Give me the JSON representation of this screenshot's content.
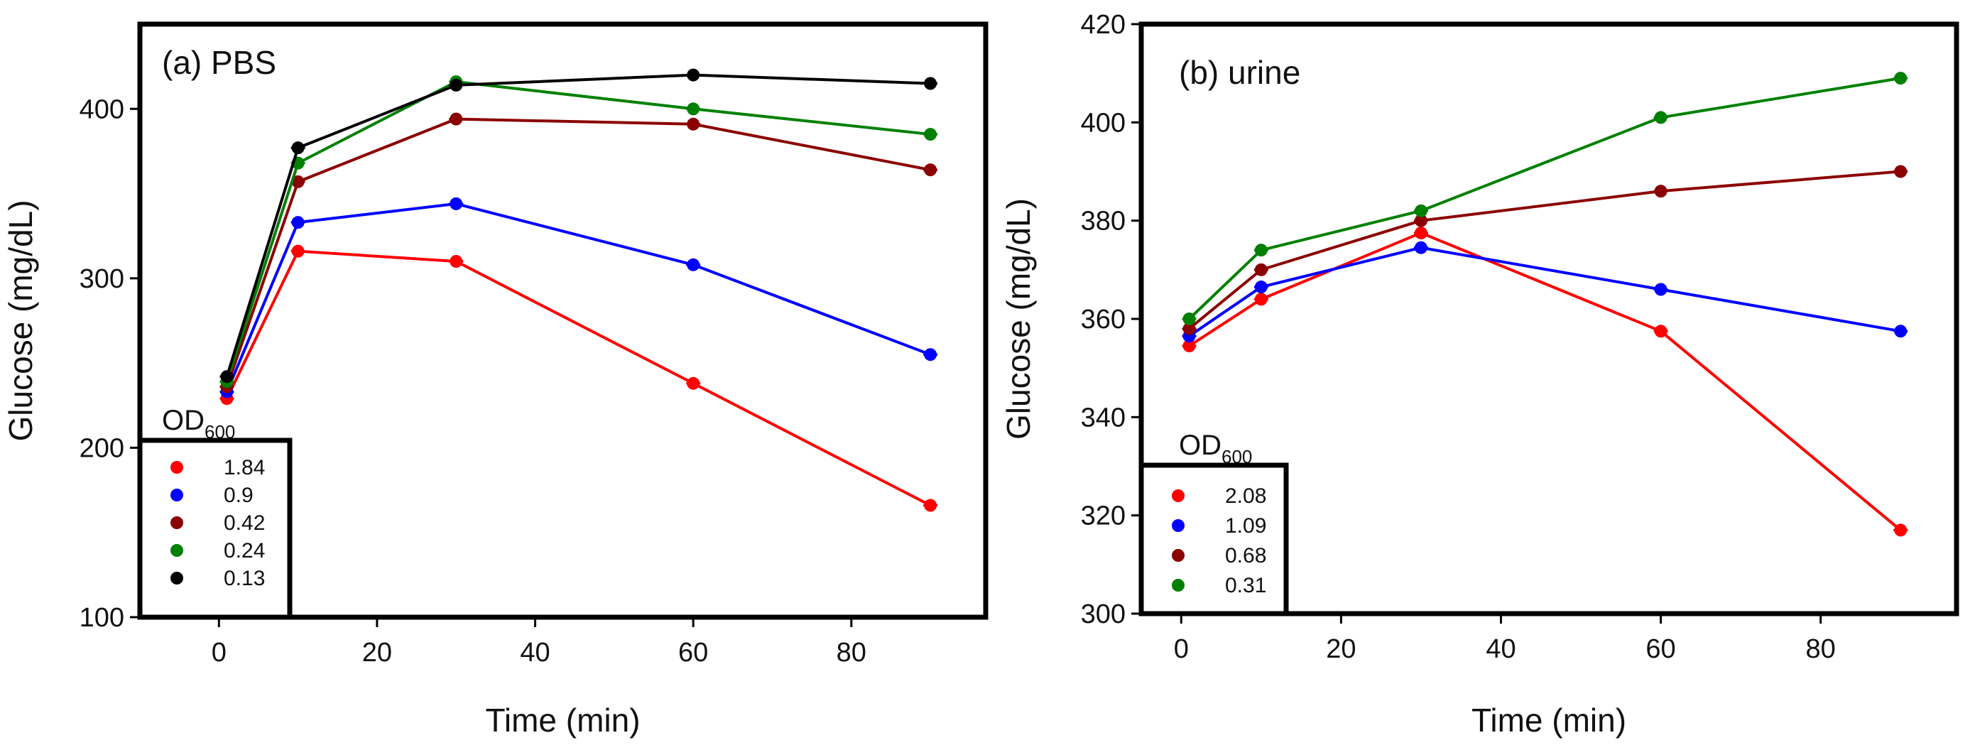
{
  "chart_data": [
    {
      "type": "line",
      "panel_label": "(a)  PBS",
      "xlabel": "Time (min)",
      "ylabel": "Glucose (mg/dL)",
      "xlim": [
        -10,
        97
      ],
      "ylim": [
        100,
        450
      ],
      "xticks": [
        0,
        20,
        40,
        60,
        80
      ],
      "yticks": [
        100,
        200,
        300,
        400
      ],
      "grid": false,
      "legend": {
        "title": "OD",
        "title_sub": "600",
        "position": "bottom-left"
      },
      "x": [
        1,
        10,
        30,
        60,
        90
      ],
      "series": [
        {
          "name": "1.84",
          "color": "#ff0000",
          "values": [
            229,
            316,
            310,
            238,
            166
          ]
        },
        {
          "name": "0.9",
          "color": "#0000ff",
          "values": [
            233,
            333,
            344,
            308,
            255
          ]
        },
        {
          "name": "0.42",
          "color": "#8b0000",
          "values": [
            236,
            357,
            394,
            391,
            364
          ]
        },
        {
          "name": "0.24",
          "color": "#008000",
          "values": [
            239,
            368,
            416,
            400,
            385
          ]
        },
        {
          "name": "0.13",
          "color": "#000000",
          "values": [
            242,
            377,
            414,
            420,
            415
          ]
        }
      ]
    },
    {
      "type": "line",
      "panel_label": "(b)  urine",
      "xlabel": "Time (min)",
      "ylabel": "Glucose (mg/dL)",
      "xlim": [
        -5,
        97
      ],
      "ylim": [
        300,
        420
      ],
      "xticks": [
        0,
        20,
        40,
        60,
        80
      ],
      "yticks": [
        300,
        320,
        340,
        360,
        380,
        400,
        420
      ],
      "grid": false,
      "legend": {
        "title": "OD",
        "title_sub": "600",
        "position": "bottom-left"
      },
      "x": [
        1,
        10,
        30,
        60,
        90
      ],
      "series": [
        {
          "name": "2.08",
          "color": "#ff0000",
          "values": [
            354.5,
            364,
            377.5,
            357.5,
            317
          ]
        },
        {
          "name": "1.09",
          "color": "#0000ff",
          "values": [
            356.5,
            366.5,
            374.5,
            366,
            357.5
          ]
        },
        {
          "name": "0.68",
          "color": "#8b0000",
          "values": [
            358,
            370,
            380,
            386,
            390
          ]
        },
        {
          "name": "0.31",
          "color": "#008000",
          "values": [
            360,
            374,
            382,
            401,
            409
          ]
        }
      ]
    }
  ]
}
